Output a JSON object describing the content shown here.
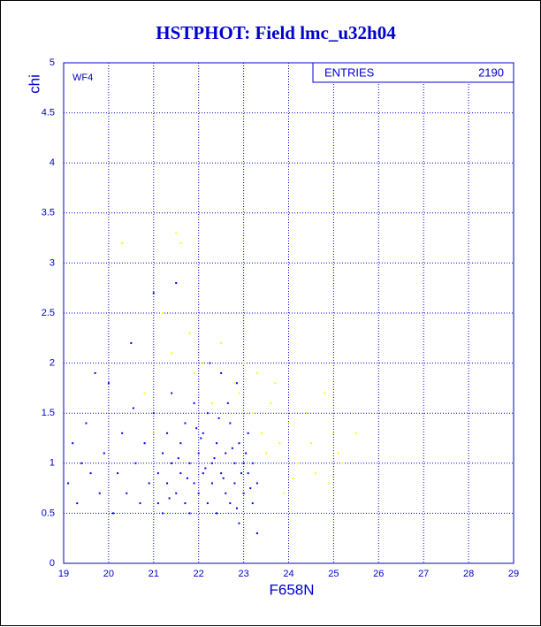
{
  "chart_data": {
    "type": "scatter",
    "title": "HSTPHOT: Field lmc_u32h04",
    "x_label": "F658N",
    "y_label": "chi",
    "panel_label": "WF4",
    "entries_label": "ENTRIES",
    "entries": 2190,
    "grid": true,
    "xlim": [
      19,
      29
    ],
    "ylim": [
      0,
      5
    ],
    "xticks": [
      19,
      20,
      21,
      22,
      23,
      24,
      25,
      26,
      27,
      28,
      29
    ],
    "yticks": [
      0,
      0.5,
      1,
      1.5,
      2,
      2.5,
      3,
      3.5,
      4,
      4.5,
      5
    ],
    "series": [
      {
        "color": "#0000ff",
        "x": [
          19.1,
          19.2,
          19.3,
          19.4,
          19.5,
          19.6,
          19.7,
          19.8,
          19.9,
          20.0,
          20.1,
          20.2,
          20.3,
          20.4,
          20.5,
          20.6,
          20.7,
          20.8,
          20.9,
          21.0,
          21.0,
          21.1,
          21.1,
          21.2,
          21.2,
          21.3,
          21.3,
          21.4,
          21.4,
          21.5,
          21.5,
          21.6,
          21.6,
          21.7,
          21.7,
          21.8,
          21.8,
          21.9,
          21.9,
          22.0,
          22.0,
          22.1,
          22.1,
          22.2,
          22.2,
          22.3,
          22.3,
          22.4,
          22.4,
          22.5,
          22.5,
          22.6,
          22.6,
          22.7,
          22.7,
          22.8,
          22.8,
          22.9,
          22.9,
          23.0,
          23.0,
          23.1,
          23.1,
          23.2,
          23.2,
          23.3,
          23.3,
          22.05,
          22.15,
          22.35,
          22.55,
          22.75,
          22.95,
          23.15,
          21.55,
          21.75,
          21.95,
          22.45,
          22.65,
          23.05,
          22.85,
          21.35,
          20.55,
          22.25,
          22.85
        ],
        "values": [
          0.8,
          1.2,
          0.6,
          1.0,
          1.4,
          0.9,
          1.9,
          0.7,
          1.1,
          1.8,
          0.5,
          0.9,
          1.3,
          0.7,
          2.2,
          1.0,
          0.6,
          1.2,
          0.8,
          1.5,
          2.7,
          0.9,
          0.6,
          1.1,
          0.5,
          1.3,
          0.8,
          1.0,
          1.7,
          0.7,
          2.8,
          1.2,
          0.9,
          0.6,
          1.4,
          1.0,
          0.5,
          1.6,
          0.8,
          1.1,
          0.7,
          1.3,
          0.9,
          0.6,
          1.5,
          1.0,
          0.8,
          1.2,
          0.5,
          1.9,
          0.9,
          1.1,
          0.7,
          1.4,
          0.6,
          1.0,
          0.8,
          1.2,
          0.4,
          1.0,
          0.7,
          0.9,
          1.3,
          0.6,
          1.0,
          0.8,
          0.3,
          1.25,
          0.95,
          1.05,
          0.85,
          1.15,
          0.9,
          0.75,
          1.05,
          0.85,
          1.35,
          1.45,
          1.6,
          1.1,
          0.55,
          0.65,
          1.55,
          2.0,
          1.8
        ]
      },
      {
        "color": "#ffff00",
        "x": [
          20.3,
          21.5,
          21.6,
          21.2,
          21.8,
          22.1,
          22.5,
          22.8,
          23.0,
          23.2,
          23.4,
          23.6,
          23.8,
          24.0,
          24.2,
          24.4,
          24.6,
          24.8,
          25.0,
          25.2,
          25.5,
          24.9,
          23.9,
          23.5,
          22.9,
          21.9,
          21.4,
          22.3,
          23.7,
          24.5,
          23.3,
          20.8,
          21.0,
          24.1,
          25.1
        ],
        "values": [
          3.2,
          3.3,
          3.2,
          2.5,
          2.3,
          2.0,
          2.2,
          1.8,
          2.0,
          1.5,
          1.3,
          1.6,
          1.2,
          1.4,
          1.0,
          1.5,
          0.9,
          1.7,
          1.3,
          1.0,
          1.3,
          0.8,
          0.7,
          1.1,
          1.7,
          1.9,
          2.1,
          1.6,
          1.8,
          1.2,
          1.9,
          1.7,
          1.3,
          0.85,
          1.1
        ]
      }
    ]
  }
}
